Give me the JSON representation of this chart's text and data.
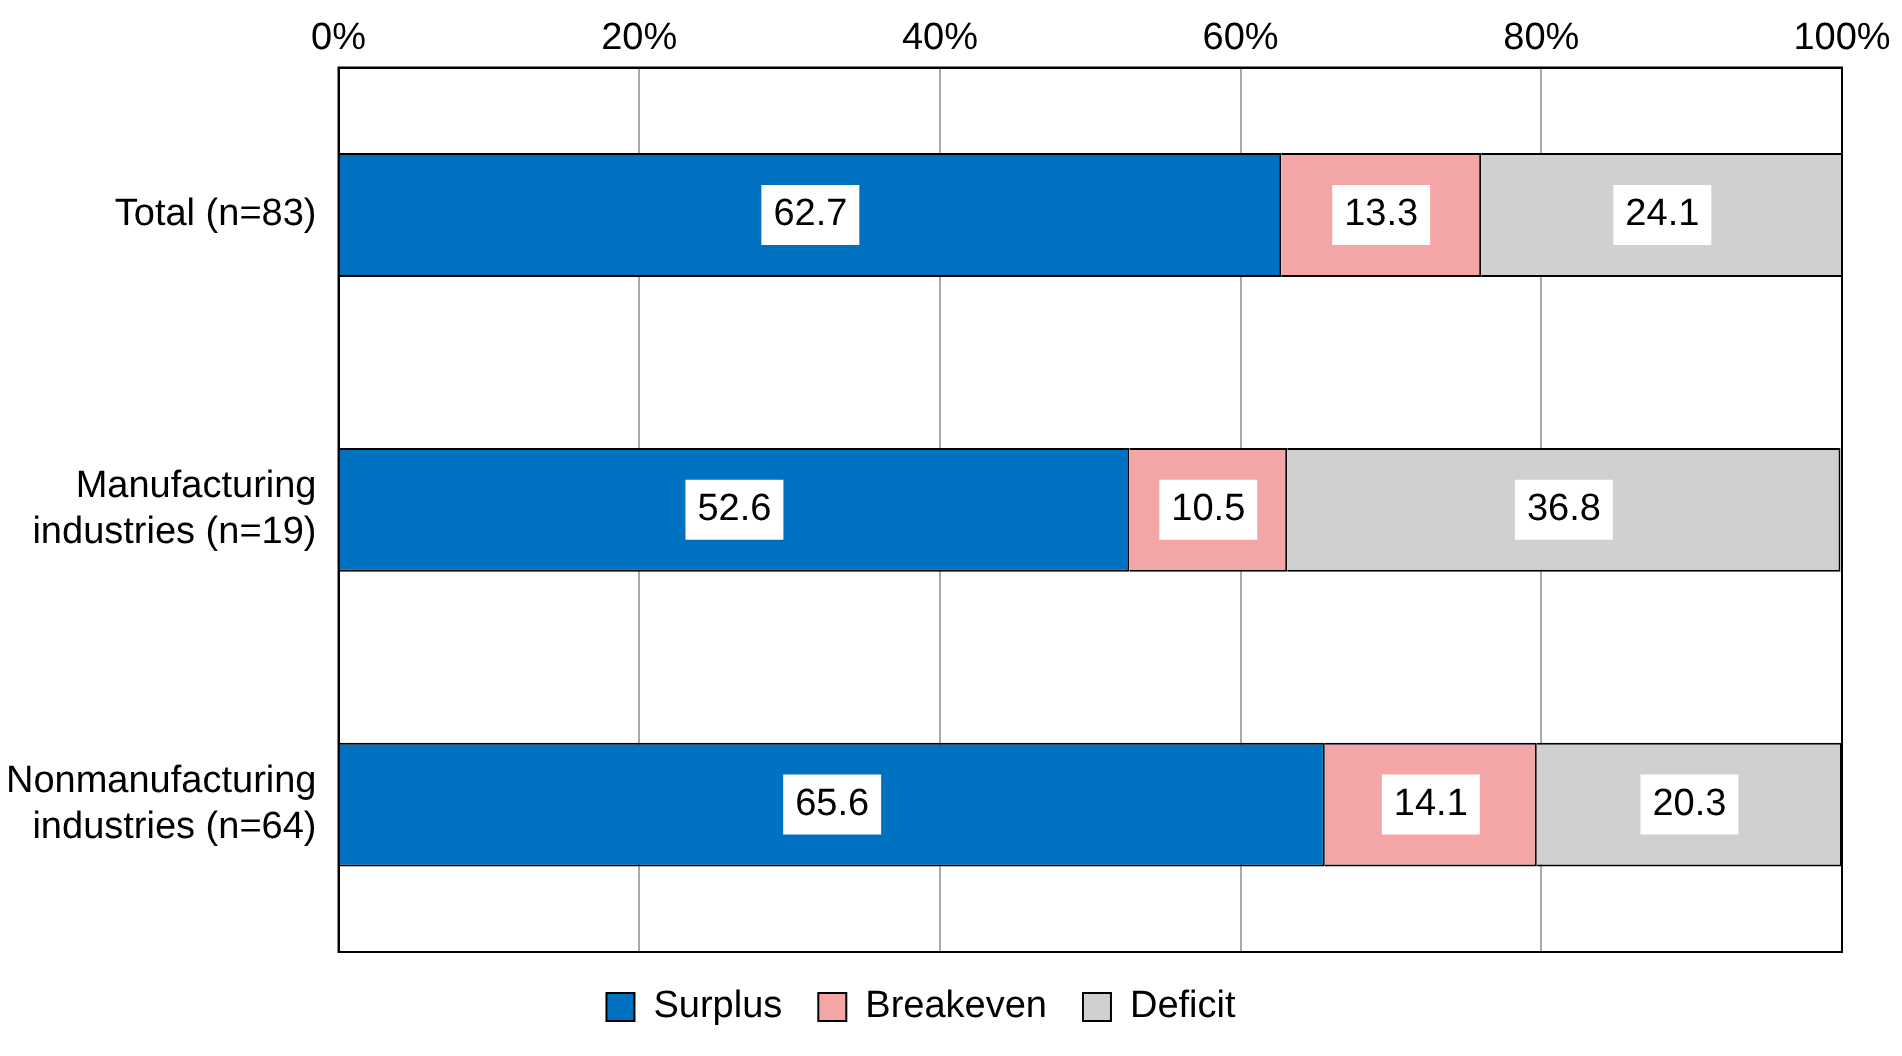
{
  "chart_data": {
    "type": "bar",
    "orientation": "horizontal",
    "stacked": true,
    "categories": [
      "Total (n=83)",
      "Manufacturing industries (n=19)",
      "Nonmanufacturing industries (n=64)"
    ],
    "series": [
      {
        "name": "Surplus",
        "color": "#0070c0",
        "values": [
          62.7,
          52.6,
          65.6
        ]
      },
      {
        "name": "Breakeven",
        "color": "#f4a6a6",
        "values": [
          13.3,
          10.5,
          14.1
        ]
      },
      {
        "name": "Deficit",
        "color": "#d0d0d0",
        "values": [
          24.1,
          36.8,
          20.3
        ]
      }
    ],
    "xlim": [
      0,
      100
    ],
    "xticks": [
      {
        "value": 0,
        "label": "0%"
      },
      {
        "value": 20,
        "label": "20%"
      },
      {
        "value": 40,
        "label": "40%"
      },
      {
        "value": 60,
        "label": "60%"
      },
      {
        "value": 80,
        "label": "80%"
      },
      {
        "value": 100,
        "label": "100%"
      }
    ],
    "grid": "x",
    "legend": "bottom",
    "data_labels": true
  }
}
